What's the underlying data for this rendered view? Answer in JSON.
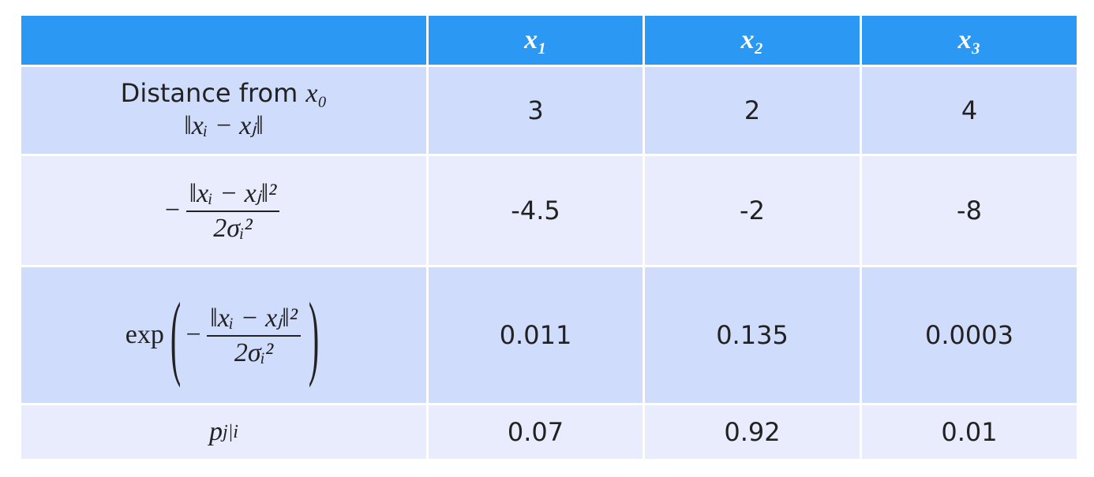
{
  "table": {
    "header": [
      "",
      "x₁",
      "x₂",
      "x₃"
    ],
    "rows": [
      {
        "label": {
          "text": "Distance from",
          "variable": "x₀",
          "expression": "‖xᵢ − xⱼ‖"
        },
        "cells": [
          "3",
          "2",
          "4"
        ]
      },
      {
        "label": {
          "sign": "−",
          "numerator": "‖xᵢ − xⱼ‖²",
          "denominator": "2σᵢ²"
        },
        "cells": [
          "-4.5",
          "-2",
          "-8"
        ]
      },
      {
        "label": {
          "function": "exp",
          "sign": "−",
          "numerator": "‖xᵢ − xⱼ‖²",
          "denominator": "2σᵢ²"
        },
        "cells": [
          "0.011",
          "0.135",
          "0.0003"
        ]
      },
      {
        "label": {
          "base": "p",
          "subscript": "j|i"
        },
        "cells": [
          "0.07",
          "0.92",
          "0.01"
        ]
      }
    ]
  }
}
